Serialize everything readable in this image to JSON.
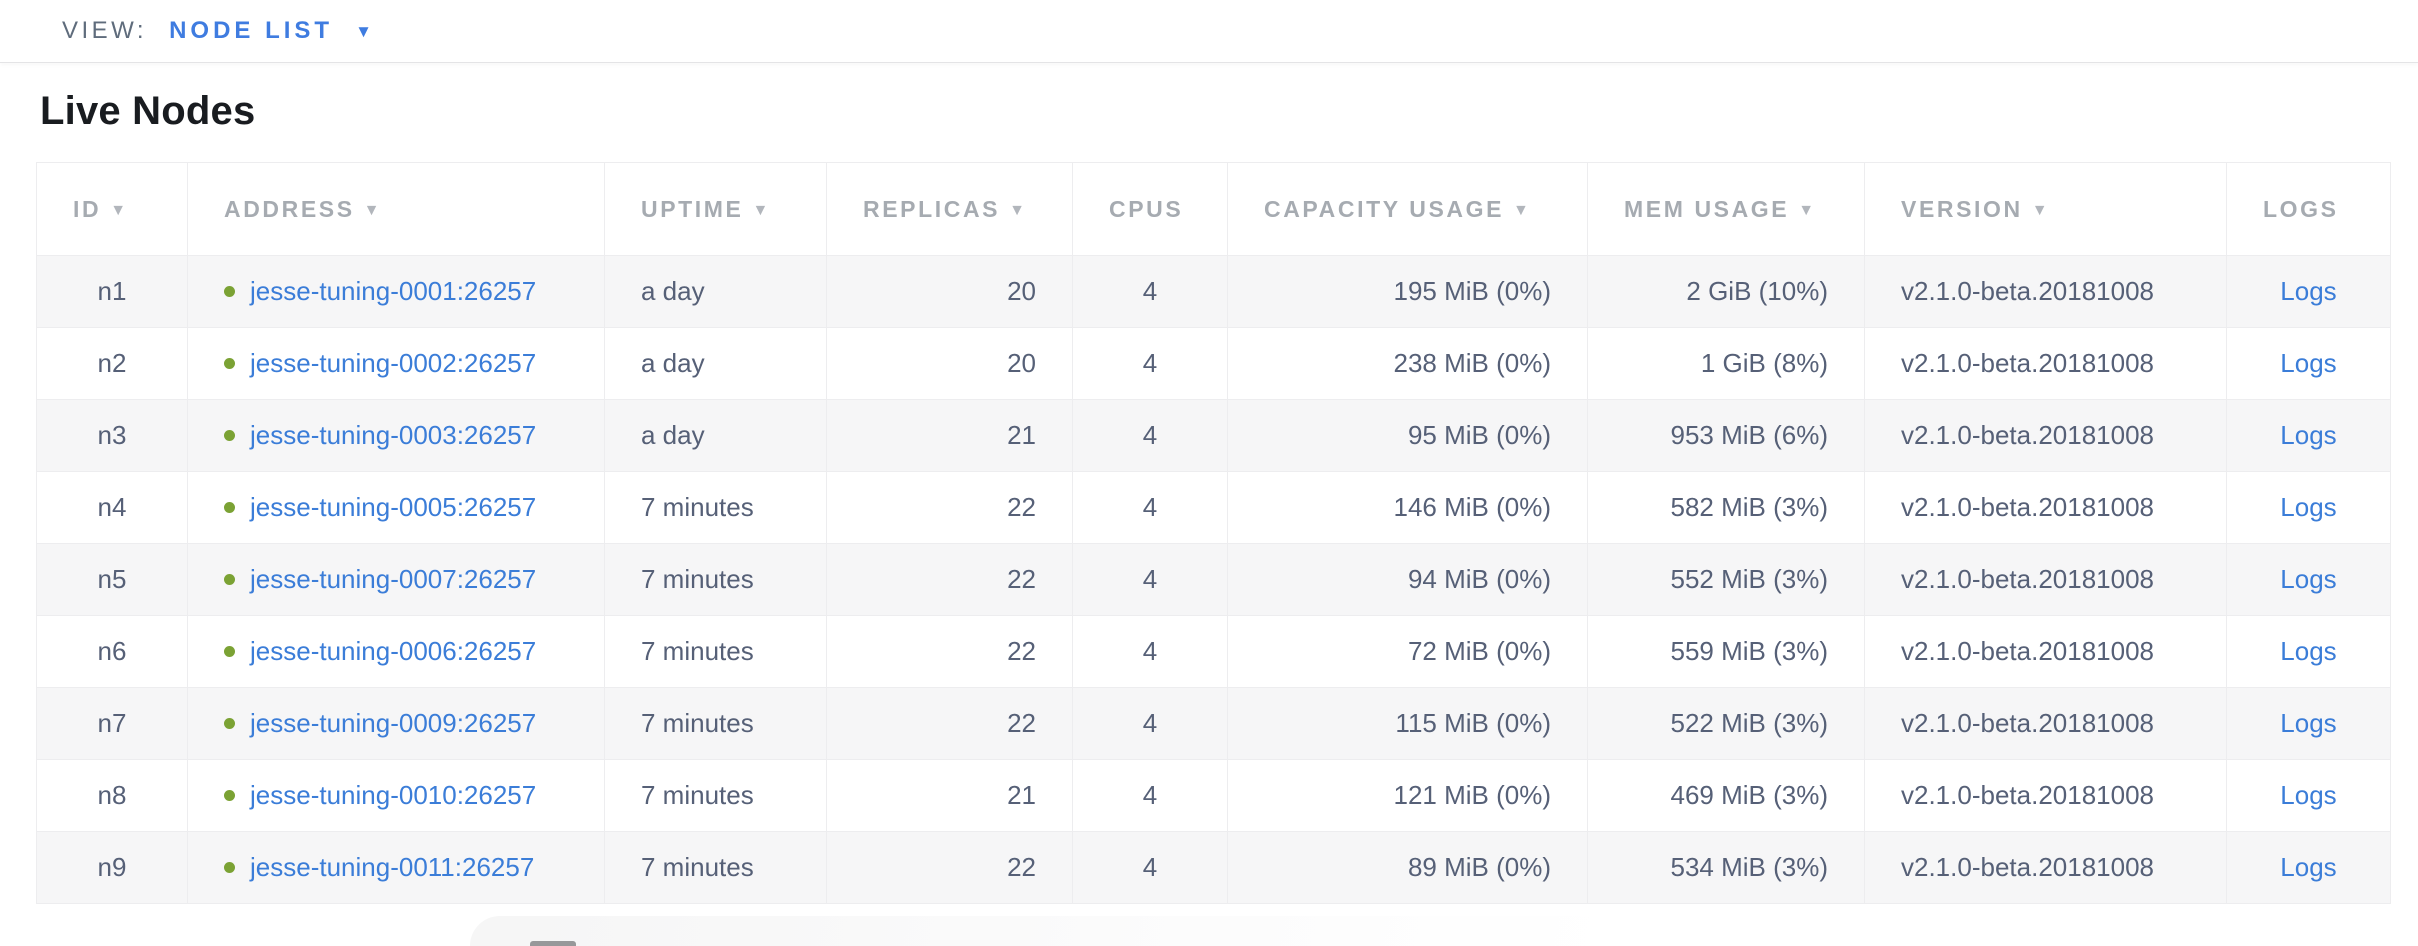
{
  "view_bar": {
    "label": "VIEW:",
    "selected": "NODE LIST",
    "caret": "▼"
  },
  "page": {
    "title": "Live Nodes"
  },
  "table": {
    "sort_icon": "▼",
    "columns": [
      {
        "label": "ID",
        "sortable": true
      },
      {
        "label": "ADDRESS",
        "sortable": true
      },
      {
        "label": "UPTIME",
        "sortable": true
      },
      {
        "label": "REPLICAS",
        "sortable": true
      },
      {
        "label": "CPUS",
        "sortable": false
      },
      {
        "label": "CAPACITY USAGE",
        "sortable": true
      },
      {
        "label": "MEM USAGE",
        "sortable": true
      },
      {
        "label": "VERSION",
        "sortable": true
      },
      {
        "label": "LOGS",
        "sortable": false
      }
    ],
    "rows": [
      {
        "id": "n1",
        "address": "jesse-tuning-0001:26257",
        "status": "healthy",
        "uptime": "a day",
        "replicas": "20",
        "cpus": "4",
        "capacity_usage": "195 MiB (0%)",
        "mem_usage": "2 GiB (10%)",
        "version": "v2.1.0-beta.20181008",
        "logs_label": "Logs"
      },
      {
        "id": "n2",
        "address": "jesse-tuning-0002:26257",
        "status": "healthy",
        "uptime": "a day",
        "replicas": "20",
        "cpus": "4",
        "capacity_usage": "238 MiB (0%)",
        "mem_usage": "1 GiB (8%)",
        "version": "v2.1.0-beta.20181008",
        "logs_label": "Logs"
      },
      {
        "id": "n3",
        "address": "jesse-tuning-0003:26257",
        "status": "healthy",
        "uptime": "a day",
        "replicas": "21",
        "cpus": "4",
        "capacity_usage": "95 MiB (0%)",
        "mem_usage": "953 MiB (6%)",
        "version": "v2.1.0-beta.20181008",
        "logs_label": "Logs"
      },
      {
        "id": "n4",
        "address": "jesse-tuning-0005:26257",
        "status": "healthy",
        "uptime": "7 minutes",
        "replicas": "22",
        "cpus": "4",
        "capacity_usage": "146 MiB (0%)",
        "mem_usage": "582 MiB (3%)",
        "version": "v2.1.0-beta.20181008",
        "logs_label": "Logs"
      },
      {
        "id": "n5",
        "address": "jesse-tuning-0007:26257",
        "status": "healthy",
        "uptime": "7 minutes",
        "replicas": "22",
        "cpus": "4",
        "capacity_usage": "94 MiB (0%)",
        "mem_usage": "552 MiB (3%)",
        "version": "v2.1.0-beta.20181008",
        "logs_label": "Logs"
      },
      {
        "id": "n6",
        "address": "jesse-tuning-0006:26257",
        "status": "healthy",
        "uptime": "7 minutes",
        "replicas": "22",
        "cpus": "4",
        "capacity_usage": "72 MiB (0%)",
        "mem_usage": "559 MiB (3%)",
        "version": "v2.1.0-beta.20181008",
        "logs_label": "Logs"
      },
      {
        "id": "n7",
        "address": "jesse-tuning-0009:26257",
        "status": "healthy",
        "uptime": "7 minutes",
        "replicas": "22",
        "cpus": "4",
        "capacity_usage": "115 MiB (0%)",
        "mem_usage": "522 MiB (3%)",
        "version": "v2.1.0-beta.20181008",
        "logs_label": "Logs"
      },
      {
        "id": "n8",
        "address": "jesse-tuning-0010:26257",
        "status": "healthy",
        "uptime": "7 minutes",
        "replicas": "21",
        "cpus": "4",
        "capacity_usage": "121 MiB (0%)",
        "mem_usage": "469 MiB (3%)",
        "version": "v2.1.0-beta.20181008",
        "logs_label": "Logs"
      },
      {
        "id": "n9",
        "address": "jesse-tuning-0011:26257",
        "status": "healthy",
        "uptime": "7 minutes",
        "replicas": "22",
        "cpus": "4",
        "capacity_usage": "89 MiB (0%)",
        "mem_usage": "534 MiB (3%)",
        "version": "v2.1.0-beta.20181008",
        "logs_label": "Logs"
      }
    ]
  },
  "colors": {
    "accent_blue": "#3f7ce0",
    "link_blue": "#3b7dd8",
    "status_healthy_green": "#7ba234",
    "header_text": "#a6abb1",
    "cell_text": "#566077",
    "row_stripe": "#f6f6f7",
    "table_border": "#ededef"
  }
}
